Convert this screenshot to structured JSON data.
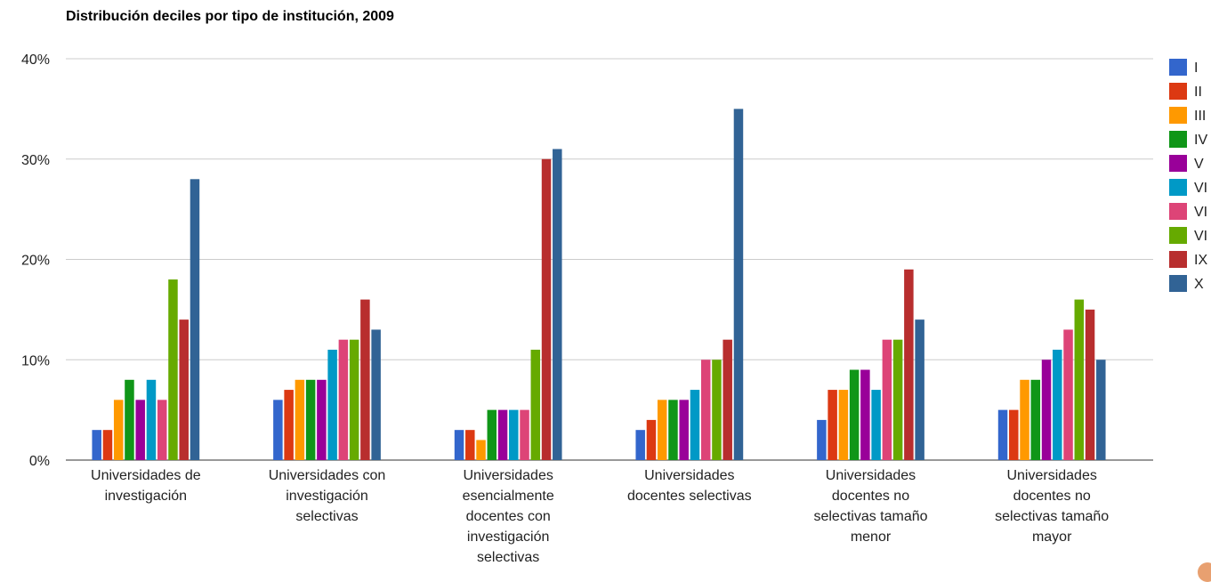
{
  "chart_data": {
    "type": "bar",
    "title": "Distribución deciles por tipo de institución, 2009",
    "xlabel": "",
    "ylabel": "",
    "ylim": [
      0,
      40
    ],
    "yticks": [
      "0%",
      "10%",
      "20%",
      "30%",
      "40%"
    ],
    "grid": true,
    "legend_position": "right",
    "categories": [
      "Universidades de investigación",
      "Universidades con investigación selectivas",
      "Universidades esencialmente docentes con investigación selectivas",
      "Universidades docentes selectivas",
      "Universidades docentes no selectivas tamaño menor",
      "Universidades docentes no selectivas tamaño mayor"
    ],
    "series": [
      {
        "name": "I",
        "color": "#3366cc",
        "values": [
          3,
          6,
          3,
          3,
          4,
          5
        ]
      },
      {
        "name": "II",
        "color": "#dc3912",
        "values": [
          3,
          7,
          3,
          4,
          7,
          5
        ]
      },
      {
        "name": "III",
        "color": "#ff9900",
        "values": [
          6,
          8,
          2,
          6,
          7,
          8
        ]
      },
      {
        "name": "IV",
        "color": "#109618",
        "values": [
          8,
          8,
          5,
          6,
          9,
          8
        ]
      },
      {
        "name": "V",
        "color": "#990099",
        "values": [
          6,
          8,
          5,
          6,
          9,
          10
        ]
      },
      {
        "name": "VI",
        "color": "#0099c6",
        "values": [
          8,
          11,
          5,
          7,
          7,
          11
        ]
      },
      {
        "name": "VI",
        "color": "#dd4477",
        "values": [
          6,
          12,
          5,
          10,
          12,
          13
        ]
      },
      {
        "name": "VI",
        "color": "#66aa00",
        "values": [
          18,
          12,
          11,
          10,
          12,
          16
        ]
      },
      {
        "name": "IX",
        "color": "#b82e2e",
        "values": [
          14,
          16,
          30,
          12,
          19,
          15
        ]
      },
      {
        "name": "X",
        "color": "#316395",
        "values": [
          28,
          13,
          31,
          35,
          14,
          10
        ]
      }
    ]
  }
}
